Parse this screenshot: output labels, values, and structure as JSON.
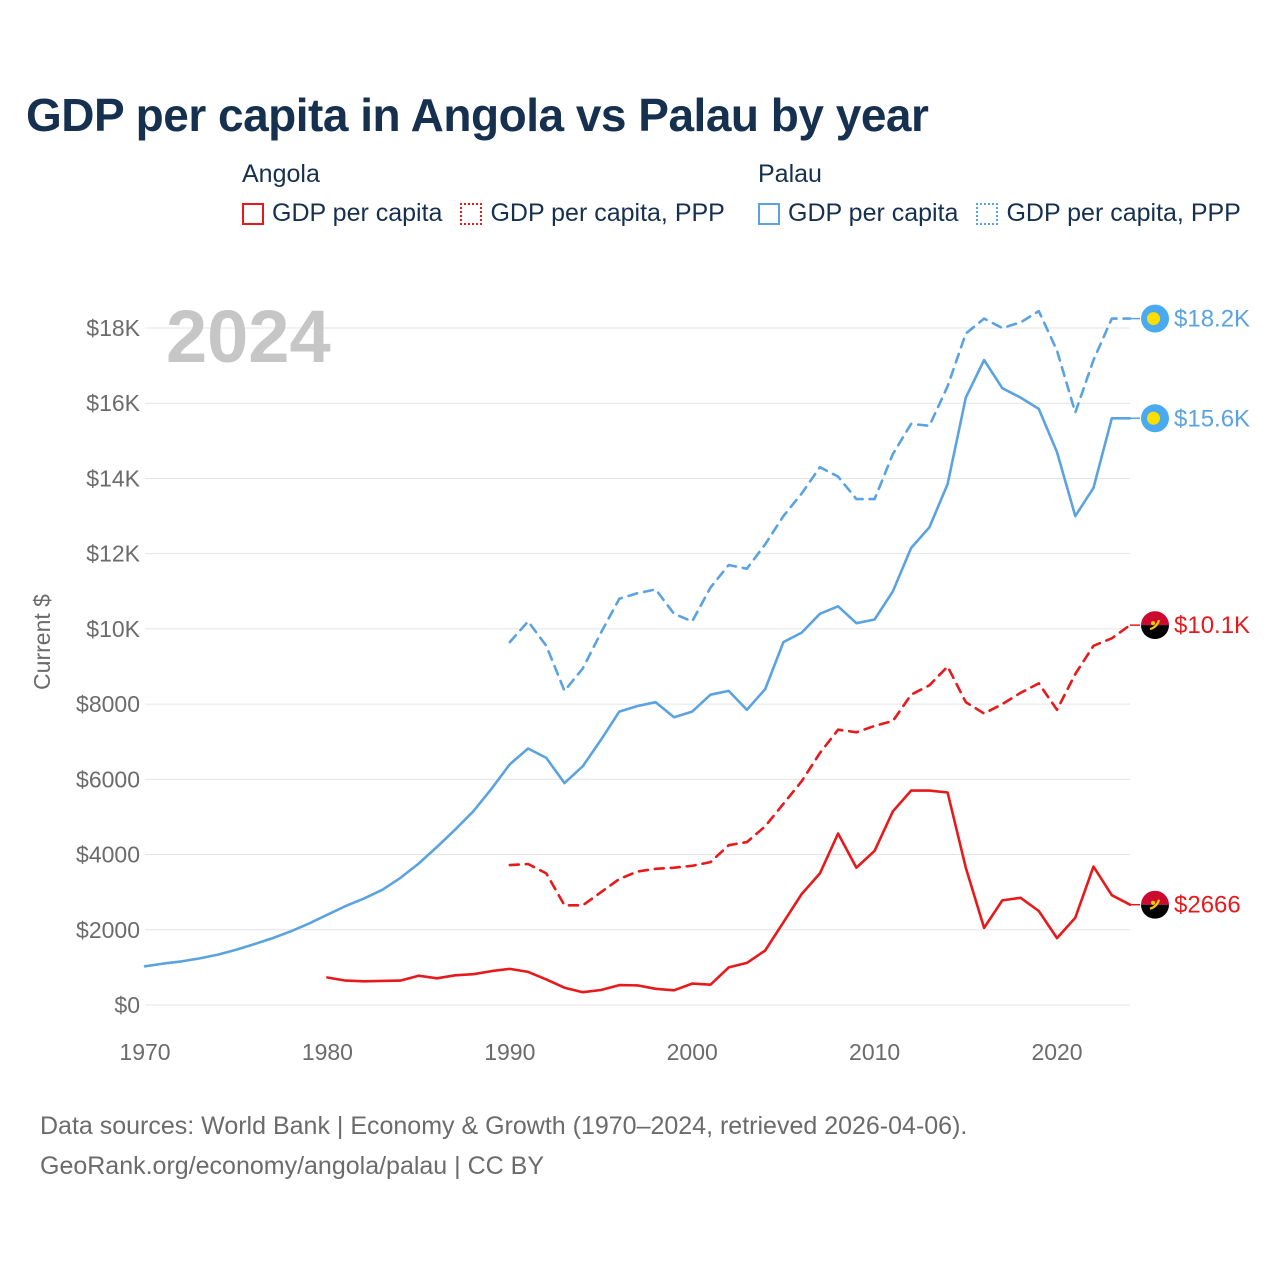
{
  "title": "GDP per capita in Angola vs Palau by year",
  "legend": {
    "groups": [
      {
        "country": "Angola",
        "color": "#e8191b",
        "items": [
          {
            "label": "GDP per capita",
            "style": "solid"
          },
          {
            "label": "GDP per capita, PPP",
            "style": "dotted"
          }
        ]
      },
      {
        "country": "Palau",
        "color": "#5ba3e0",
        "items": [
          {
            "label": "GDP per capita",
            "style": "solid"
          },
          {
            "label": "GDP per capita, PPP",
            "style": "dotted"
          }
        ]
      }
    ]
  },
  "sources": {
    "line1": "Data sources: World Bank | Economy & Growth (1970–2024, retrieved 2026-04-06).",
    "line2": "GeoRank.org/economy/angola/palau | CC BY"
  },
  "colors": {
    "angola": "#e8191b",
    "palau": "#5ba3e0",
    "grid": "#e4e4e4",
    "axis_text": "#6b6b6b",
    "year_watermark": "#c6c6c6"
  },
  "chart_data": {
    "type": "line",
    "title": "GDP per capita in Angola vs Palau by year",
    "year_label": "2024",
    "xlabel": "",
    "ylabel": "Current $",
    "xlim": [
      1970,
      2024
    ],
    "ylim": [
      0,
      19000
    ],
    "x_ticks": [
      1970,
      1980,
      1990,
      2000,
      2010,
      2020
    ],
    "y_ticks": [
      {
        "value": 0,
        "label": "$0"
      },
      {
        "value": 2000,
        "label": "$2000"
      },
      {
        "value": 4000,
        "label": "$4000"
      },
      {
        "value": 6000,
        "label": "$6000"
      },
      {
        "value": 8000,
        "label": "$8000"
      },
      {
        "value": 10000,
        "label": "$10K"
      },
      {
        "value": 12000,
        "label": "$12K"
      },
      {
        "value": 14000,
        "label": "$14K"
      },
      {
        "value": 16000,
        "label": "$16K"
      },
      {
        "value": 18000,
        "label": "$18K"
      }
    ],
    "grid": true,
    "series": [
      {
        "name": "Palau GDP per capita, PPP",
        "country": "Palau",
        "style": "dashed",
        "color": "#5ba3e0",
        "end_label": "$18.2K",
        "flag": "palau",
        "x": [
          1990,
          1991,
          1992,
          1993,
          1994,
          1995,
          1996,
          1997,
          1998,
          1999,
          2000,
          2001,
          2002,
          2003,
          2004,
          2005,
          2006,
          2007,
          2008,
          2009,
          2010,
          2011,
          2012,
          2013,
          2014,
          2015,
          2016,
          2017,
          2018,
          2019,
          2020,
          2021,
          2022,
          2023,
          2024
        ],
        "values": [
          9650,
          10200,
          9550,
          8350,
          8950,
          9900,
          10800,
          10950,
          11050,
          10400,
          10200,
          11100,
          11700,
          11600,
          12250,
          13000,
          13600,
          14300,
          14050,
          13450,
          13450,
          14650,
          15450,
          15400,
          16450,
          17850,
          18250,
          18000,
          18150,
          18450,
          17400,
          15750,
          17150,
          18250,
          18250
        ]
      },
      {
        "name": "Palau GDP per capita",
        "country": "Palau",
        "style": "solid",
        "color": "#5ba3e0",
        "end_label": "$15.6K",
        "flag": "palau",
        "x": [
          1970,
          1971,
          1972,
          1973,
          1974,
          1975,
          1976,
          1977,
          1978,
          1979,
          1980,
          1981,
          1982,
          1983,
          1984,
          1985,
          1986,
          1987,
          1988,
          1989,
          1990,
          1991,
          1992,
          1993,
          1994,
          1995,
          1996,
          1997,
          1998,
          1999,
          2000,
          2001,
          2002,
          2003,
          2004,
          2005,
          2006,
          2007,
          2008,
          2009,
          2010,
          2011,
          2012,
          2013,
          2014,
          2015,
          2016,
          2017,
          2018,
          2019,
          2020,
          2021,
          2022,
          2023,
          2024
        ],
        "values": [
          1030,
          1100,
          1160,
          1240,
          1340,
          1470,
          1620,
          1780,
          1960,
          2170,
          2400,
          2630,
          2830,
          3060,
          3380,
          3760,
          4200,
          4660,
          5150,
          5750,
          6400,
          6820,
          6570,
          5900,
          6350,
          7050,
          7800,
          7950,
          8050,
          7650,
          7800,
          8250,
          8350,
          7850,
          8400,
          9650,
          9900,
          10400,
          10600,
          10150,
          10250,
          11000,
          12150,
          12700,
          13850,
          16150,
          17150,
          16400,
          16150,
          15850,
          14700,
          13000,
          13750,
          15600,
          15600
        ]
      },
      {
        "name": "Angola GDP per capita, PPP",
        "country": "Angola",
        "style": "dashed",
        "color": "#e8191b",
        "end_label": "$10.1K",
        "flag": "angola",
        "x": [
          1990,
          1991,
          1992,
          1993,
          1994,
          1995,
          1996,
          1997,
          1998,
          1999,
          2000,
          2001,
          2002,
          2003,
          2004,
          2005,
          2006,
          2007,
          2008,
          2009,
          2010,
          2011,
          2012,
          2013,
          2014,
          2015,
          2016,
          2017,
          2018,
          2019,
          2020,
          2021,
          2022,
          2023,
          2024
        ],
        "values": [
          3720,
          3750,
          3500,
          2650,
          2650,
          3000,
          3350,
          3550,
          3620,
          3650,
          3700,
          3800,
          4250,
          4330,
          4750,
          5350,
          5950,
          6700,
          7320,
          7250,
          7420,
          7550,
          8250,
          8500,
          9000,
          8050,
          7750,
          8000,
          8300,
          8550,
          7850,
          8800,
          9550,
          9750,
          10100
        ]
      },
      {
        "name": "Angola GDP per capita",
        "country": "Angola",
        "style": "solid",
        "color": "#e8191b",
        "end_label": "$2666",
        "flag": "angola",
        "x": [
          1980,
          1981,
          1982,
          1983,
          1984,
          1985,
          1986,
          1987,
          1988,
          1989,
          1990,
          1991,
          1992,
          1993,
          1994,
          1995,
          1996,
          1997,
          1998,
          1999,
          2000,
          2001,
          2002,
          2003,
          2004,
          2005,
          2006,
          2007,
          2008,
          2009,
          2010,
          2011,
          2012,
          2013,
          2014,
          2015,
          2016,
          2017,
          2018,
          2019,
          2020,
          2021,
          2022,
          2023,
          2024
        ],
        "values": [
          730,
          650,
          630,
          640,
          650,
          780,
          710,
          790,
          820,
          900,
          960,
          880,
          680,
          460,
          340,
          400,
          530,
          520,
          430,
          390,
          570,
          540,
          1000,
          1120,
          1450,
          2200,
          2950,
          3500,
          4560,
          3650,
          4100,
          5150,
          5700,
          5700,
          5650,
          3650,
          2050,
          2780,
          2850,
          2500,
          1780,
          2320,
          3680,
          2920,
          2666
        ]
      }
    ]
  }
}
